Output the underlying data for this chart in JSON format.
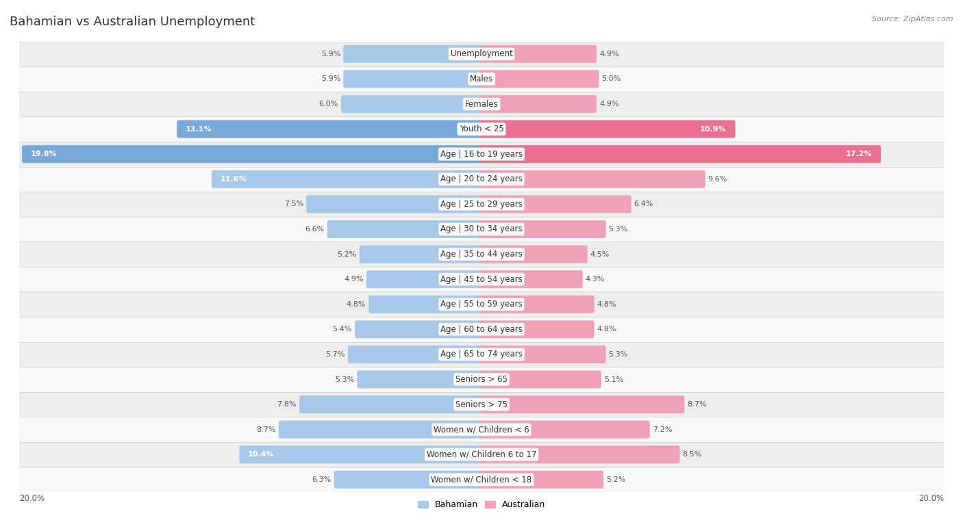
{
  "title": "Bahamian vs Australian Unemployment",
  "source": "Source: ZipAtlas.com",
  "categories": [
    "Unemployment",
    "Males",
    "Females",
    "Youth < 25",
    "Age | 16 to 19 years",
    "Age | 20 to 24 years",
    "Age | 25 to 29 years",
    "Age | 30 to 34 years",
    "Age | 35 to 44 years",
    "Age | 45 to 54 years",
    "Age | 55 to 59 years",
    "Age | 60 to 64 years",
    "Age | 65 to 74 years",
    "Seniors > 65",
    "Seniors > 75",
    "Women w/ Children < 6",
    "Women w/ Children 6 to 17",
    "Women w/ Children < 18"
  ],
  "bahamian": [
    5.9,
    5.9,
    6.0,
    13.1,
    19.8,
    11.6,
    7.5,
    6.6,
    5.2,
    4.9,
    4.8,
    5.4,
    5.7,
    5.3,
    7.8,
    8.7,
    10.4,
    6.3
  ],
  "australian": [
    4.9,
    5.0,
    4.9,
    10.9,
    17.2,
    9.6,
    6.4,
    5.3,
    4.5,
    4.3,
    4.8,
    4.8,
    5.3,
    5.1,
    8.7,
    7.2,
    8.5,
    5.2
  ],
  "bahamian_color": "#a8c8e8",
  "australian_color": "#f0a0b8",
  "bahamian_color_strong": "#78a8d8",
  "australian_color_strong": "#e87090",
  "max_val": 20.0,
  "bg_row_light": "#ededee",
  "bg_row_white": "#f8f8f8",
  "title_fontsize": 13,
  "label_fontsize": 8.5,
  "value_fontsize": 8.0
}
